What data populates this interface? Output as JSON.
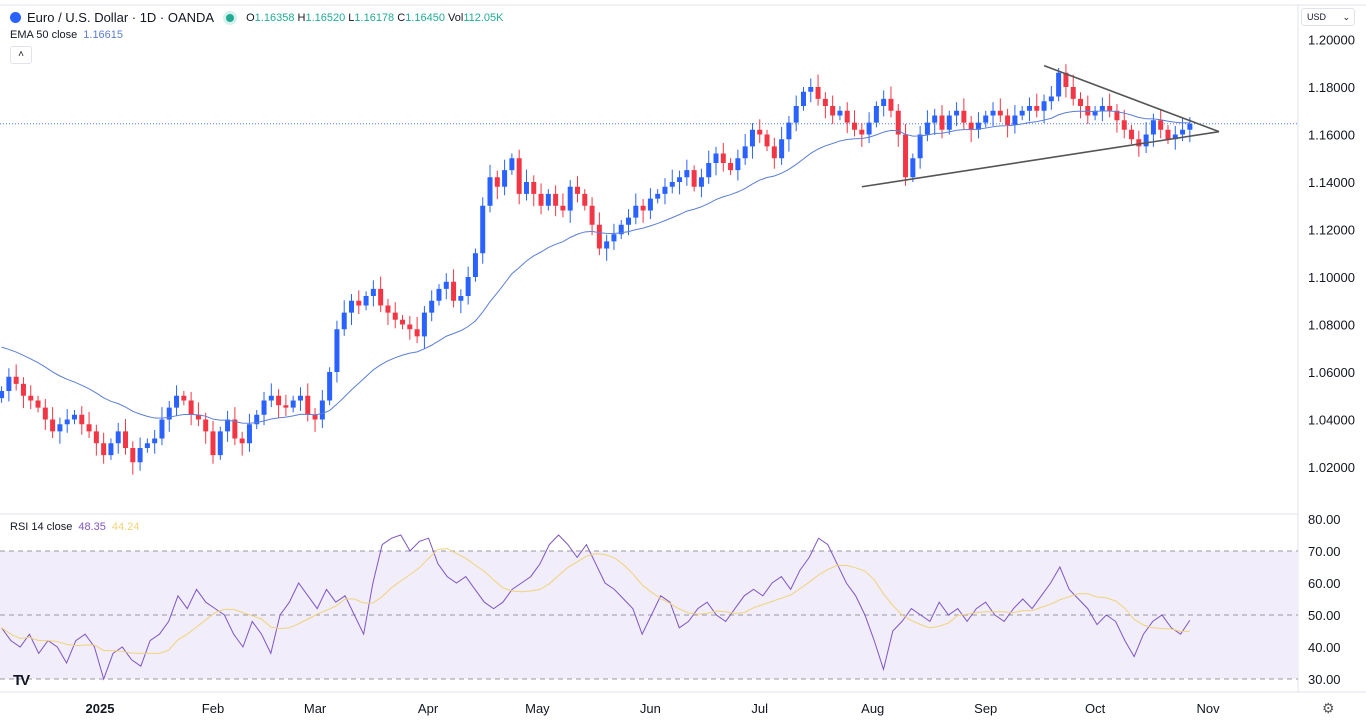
{
  "header": {
    "symbol": "Euro / U.S. Dollar · 1D · OANDA",
    "o_label": "O",
    "o": "1.16358",
    "h_label": "H",
    "h": "1.16520",
    "l_label": "L",
    "l": "1.16178",
    "c_label": "C",
    "c": "1.16450",
    "vol_label": "Vol",
    "vol": "112.05K",
    "status_color": "#22ab94"
  },
  "ema": {
    "label": "EMA 50 close",
    "value": "1.16615",
    "color": "#5b7fd6"
  },
  "rsi": {
    "label": "RSI 14 close",
    "value": "48.35",
    "signal": "44.24",
    "color": "#7e57c2",
    "signal_color": "#f0d37a"
  },
  "currency": {
    "label": "USD",
    "icon": "chevron-down-icon"
  },
  "logo": "TV",
  "chart_data": {
    "type": "candlestick",
    "up_color": "#2962ff",
    "down_color": "#f23645",
    "start_date": "2024-12-05",
    "end_date": "2025-10-27",
    "closes": [
      1.052,
      1.058,
      1.055,
      1.05,
      1.048,
      1.045,
      1.04,
      1.035,
      1.038,
      1.04,
      1.042,
      1.038,
      1.035,
      1.03,
      1.025,
      1.03,
      1.035,
      1.028,
      1.022,
      1.028,
      1.03,
      1.032,
      1.04,
      1.045,
      1.05,
      1.048,
      1.042,
      1.04,
      1.035,
      1.025,
      1.035,
      1.04,
      1.032,
      1.03,
      1.038,
      1.042,
      1.048,
      1.05,
      1.046,
      1.045,
      1.048,
      1.05,
      1.042,
      1.04,
      1.048,
      1.06,
      1.078,
      1.085,
      1.09,
      1.088,
      1.092,
      1.095,
      1.088,
      1.085,
      1.082,
      1.08,
      1.078,
      1.075,
      1.085,
      1.09,
      1.095,
      1.098,
      1.09,
      1.092,
      1.1,
      1.11,
      1.13,
      1.142,
      1.138,
      1.145,
      1.15,
      1.135,
      1.14,
      1.135,
      1.13,
      1.135,
      1.13,
      1.128,
      1.138,
      1.135,
      1.13,
      1.122,
      1.112,
      1.115,
      1.118,
      1.122,
      1.125,
      1.13,
      1.128,
      1.133,
      1.135,
      1.138,
      1.14,
      1.142,
      1.145,
      1.138,
      1.142,
      1.148,
      1.152,
      1.148,
      1.145,
      1.15,
      1.155,
      1.162,
      1.16,
      1.155,
      1.15,
      1.158,
      1.165,
      1.172,
      1.178,
      1.18,
      1.175,
      1.172,
      1.168,
      1.17,
      1.165,
      1.162,
      1.16,
      1.165,
      1.172,
      1.175,
      1.17,
      1.16,
      1.142,
      1.15,
      1.16,
      1.165,
      1.168,
      1.162,
      1.168,
      1.17,
      1.165,
      1.162,
      1.165,
      1.168,
      1.17,
      1.168,
      1.164,
      1.168,
      1.17,
      1.172,
      1.17,
      1.174,
      1.176,
      1.186,
      1.18,
      1.175,
      1.172,
      1.168,
      1.17,
      1.172,
      1.17,
      1.166,
      1.162,
      1.158,
      1.155,
      1.16,
      1.166,
      1.162,
      1.158,
      1.16,
      1.162,
      1.1645
    ],
    "last_price": 1.1645,
    "y_ticks": [
      "1.20000",
      "1.18000",
      "1.16000",
      "1.14000",
      "1.12000",
      "1.10000",
      "1.08000",
      "1.06000",
      "1.04000",
      "1.02000"
    ],
    "ylim": [
      1.02,
      1.2
    ],
    "x_ticks": [
      {
        "label": "2025",
        "date": "2025-01-01",
        "bold": true
      },
      {
        "label": "Feb",
        "date": "2025-02-01"
      },
      {
        "label": "Mar",
        "date": "2025-03-01"
      },
      {
        "label": "Apr",
        "date": "2025-04-01"
      },
      {
        "label": "May",
        "date": "2025-05-01"
      },
      {
        "label": "Jun",
        "date": "2025-06-01"
      },
      {
        "label": "Jul",
        "date": "2025-07-01"
      },
      {
        "label": "Aug",
        "date": "2025-08-01"
      },
      {
        "label": "Sep",
        "date": "2025-09-01"
      },
      {
        "label": "Oct",
        "date": "2025-10-01"
      },
      {
        "label": "Nov",
        "date": "2025-11-01"
      }
    ],
    "trendlines": [
      {
        "from": {
          "date": "2025-07-29",
          "price": 1.138
        },
        "to": {
          "date": "2025-11-04",
          "price": 1.1612
        }
      },
      {
        "from": {
          "date": "2025-09-17",
          "price": 1.189
        },
        "to": {
          "date": "2025-11-04",
          "price": 1.1612
        }
      }
    ],
    "rsi_values": [
      46,
      42,
      40,
      44,
      38,
      42,
      40,
      35,
      42,
      44,
      40,
      30,
      38,
      40,
      36,
      34,
      42,
      44,
      48,
      56,
      52,
      58,
      54,
      52,
      50,
      44,
      40,
      48,
      44,
      38,
      50,
      54,
      60,
      56,
      52,
      58,
      54,
      56,
      50,
      44,
      60,
      72,
      74,
      75,
      70,
      73,
      74,
      66,
      62,
      60,
      62,
      58,
      54,
      52,
      54,
      58,
      60,
      62,
      66,
      72,
      75,
      72,
      68,
      72,
      66,
      60,
      58,
      55,
      52,
      44,
      50,
      56,
      54,
      46,
      48,
      52,
      54,
      50,
      48,
      52,
      56,
      58,
      56,
      60,
      62,
      58,
      64,
      68,
      74,
      72,
      66,
      60,
      56,
      50,
      42,
      33,
      45,
      48,
      52,
      50,
      48,
      54,
      50,
      52,
      48,
      52,
      54,
      50,
      48,
      52,
      55,
      52,
      56,
      60,
      65,
      58,
      55,
      52,
      47,
      50,
      48,
      42,
      37,
      44,
      48,
      50,
      46,
      44,
      48.35
    ],
    "rsi_ticks": [
      "80.00",
      "70.00",
      "60.00",
      "50.00",
      "40.00",
      "30.00"
    ],
    "rsi_bands": [
      30,
      50,
      70
    ],
    "rsi_ylim": [
      30,
      80
    ]
  }
}
